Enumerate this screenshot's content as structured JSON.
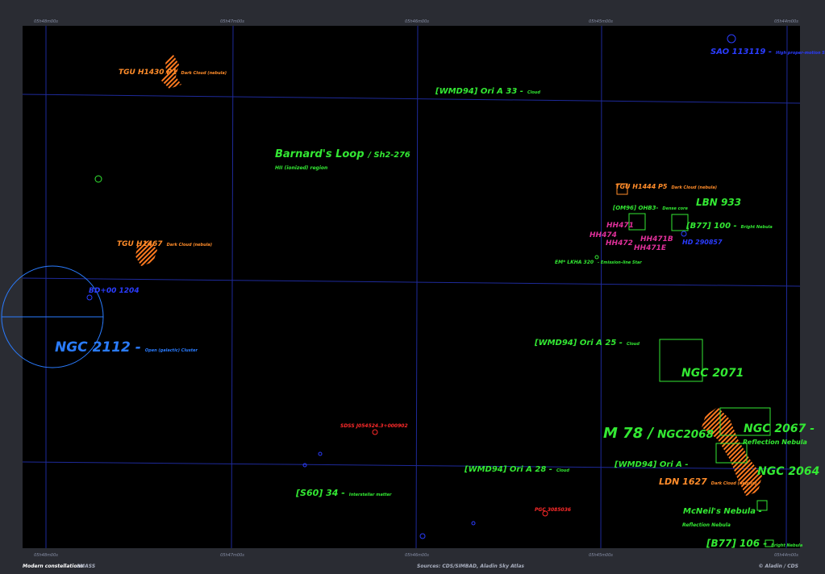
{
  "sky_view": {
    "axis_labels": [
      "05h48m00s",
      "05h47m00s",
      "05h46m00s",
      "05h45m00s",
      "05h44m00s"
    ],
    "objects": [
      {
        "name": "TGU H1430 P1",
        "note": "Dark Cloud (nebula)",
        "color": "#ff8c2a"
      },
      {
        "name": "TGU H1444 P5",
        "note": "Dark Cloud (nebula)",
        "color": "#ff8c2a"
      },
      {
        "name": "TGU H1467",
        "note": "Dark Cloud (nebula)",
        "color": "#ff8c2a"
      },
      {
        "name": "LDN 1627",
        "note": "Dark Cloud (nebula)",
        "color": "#ff8c2a"
      },
      {
        "name": "[WMD94] Ori A 33 -",
        "note": "Cloud",
        "color": "#33e833"
      },
      {
        "name": "Barnard's Loop",
        "note": "/ Sh2-276",
        "color": "#33e833"
      },
      {
        "name": "HII (ionized) region",
        "color": "#33e833"
      },
      {
        "name": "LBN 933",
        "color": "#33e833"
      },
      {
        "name": "[B77] 100 -",
        "note": "Bright Nebula",
        "color": "#33e833"
      },
      {
        "name": "[OM96] OHB3-",
        "note": "Dense core",
        "color": "#33e833"
      },
      {
        "name": "[WMD94] Ori A 25 -",
        "note": "Cloud",
        "color": "#33e833"
      },
      {
        "name": "NGC 2071",
        "color": "#33e833"
      },
      {
        "name": "M 78 /",
        "note": "NGC2068",
        "color": "#33e833"
      },
      {
        "name": "NGC 2067 -",
        "color": "#33e833"
      },
      {
        "name": "Reflection Nebula",
        "color": "#33e833"
      },
      {
        "name": "[WMD94] Ori A -",
        "color": "#33e833"
      },
      {
        "name": "NGC 2064",
        "color": "#33e833"
      },
      {
        "name": "[WMD94] Ori A 28 -",
        "note": "Cloud",
        "color": "#33e833"
      },
      {
        "name": "[S60] 34 -",
        "note": "Interstellar matter",
        "color": "#33e833"
      },
      {
        "name": "McNeil's Nebula -",
        "color": "#33e833"
      },
      {
        "name": "Reflection Nebula",
        "color": "#33e833"
      },
      {
        "name": "[B77] 106 -",
        "note": "Bright Nebula",
        "color": "#33e833"
      },
      {
        "name": "EM* LKHA 320",
        "note": "- Emission-line Star",
        "color": "#33e833"
      },
      {
        "name": "SAO 113119 -",
        "note": "High proper-motion Star",
        "color": "#2a3cff"
      },
      {
        "name": "BD+00 1204",
        "color": "#2a3cff"
      },
      {
        "name": "NGC 2112 -",
        "note": "Open (galactic) Cluster",
        "color": "#2a7cff"
      },
      {
        "name": "HD 290857",
        "color": "#2a3cff"
      },
      {
        "name": "HH471",
        "color": "#e0309a"
      },
      {
        "name": "HH474",
        "color": "#e0309a"
      },
      {
        "name": "HH472",
        "color": "#e0309a"
      },
      {
        "name": "HH471B",
        "color": "#e0309a"
      },
      {
        "name": "HH471E",
        "color": "#e0309a"
      },
      {
        "name": "SDSS J054524.3+000902",
        "color": "#ff2a2a"
      },
      {
        "name": "PGC 3085036",
        "color": "#ff2a2a"
      }
    ],
    "footer": {
      "left": "Modern constellations",
      "survey": "2MASS",
      "sources": "Sources: CDS/SIMBAD, Aladin Sky Atlas",
      "credit": "© Aladin / CDS"
    }
  }
}
